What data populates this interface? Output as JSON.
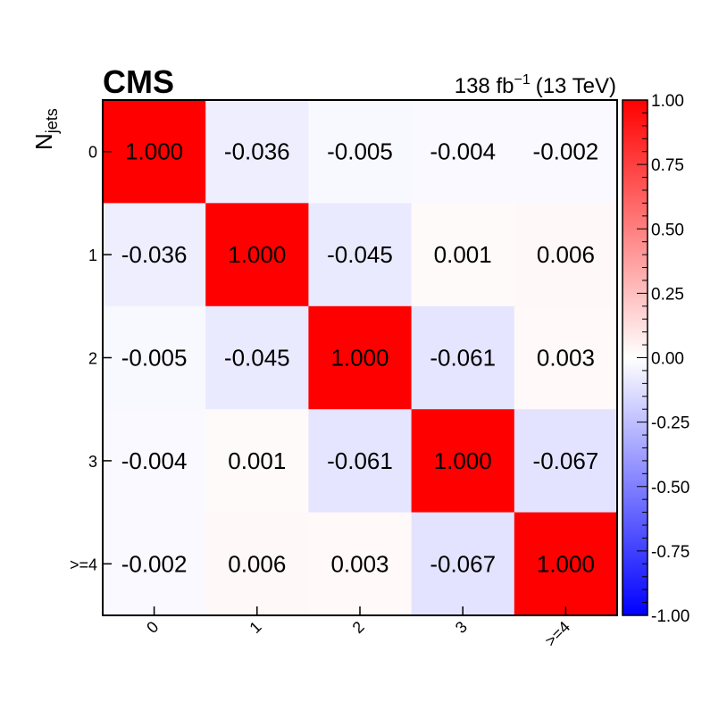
{
  "header": {
    "experiment": "CMS",
    "lumi_value": "138 fb",
    "lumi_exponent": "−1",
    "energy": "(13 TeV)"
  },
  "chart_data": {
    "type": "heatmap",
    "ylabel_main": "N",
    "ylabel_sub": "jets",
    "xlabel": "",
    "x_categories": [
      "0",
      "1",
      "2",
      "3",
      ">=4"
    ],
    "y_categories": [
      "0",
      "1",
      "2",
      "3",
      ">=4"
    ],
    "values": [
      [
        1.0,
        -0.036,
        -0.005,
        -0.004,
        -0.002
      ],
      [
        -0.036,
        1.0,
        -0.045,
        0.001,
        0.006
      ],
      [
        -0.005,
        -0.045,
        1.0,
        -0.061,
        0.003
      ],
      [
        -0.004,
        0.001,
        -0.061,
        1.0,
        -0.067
      ],
      [
        -0.002,
        0.006,
        0.003,
        -0.067,
        1.0
      ]
    ],
    "value_labels": [
      [
        "1.000",
        "-0.036",
        "-0.005",
        "-0.004",
        "-0.002"
      ],
      [
        "-0.036",
        "1.000",
        "-0.045",
        "0.001",
        "0.006"
      ],
      [
        "-0.005",
        "-0.045",
        "1.000",
        "-0.061",
        "0.003"
      ],
      [
        "-0.004",
        "0.001",
        "-0.061",
        "1.000",
        "-0.067"
      ],
      [
        "-0.002",
        "0.006",
        "0.003",
        "-0.067",
        "1.000"
      ]
    ],
    "zlim": [
      -1.0,
      1.0
    ],
    "colorbar_ticks": [
      "1.00",
      "0.75",
      "0.50",
      "0.25",
      "0.00",
      "-0.25",
      "-0.50",
      "-0.75",
      "-1.00"
    ],
    "colorbar_tick_values": [
      1.0,
      0.75,
      0.5,
      0.25,
      0.0,
      -0.25,
      -0.5,
      -0.75,
      -1.0
    ],
    "colormap": {
      "low": "#0000ff",
      "mid": "#ffffff",
      "high": "#ff0000"
    },
    "grid": false
  }
}
